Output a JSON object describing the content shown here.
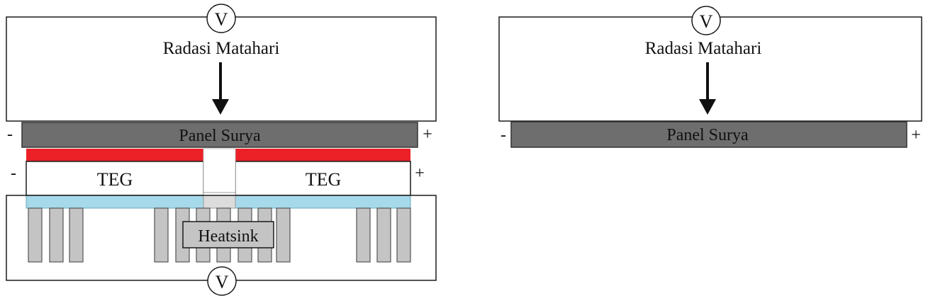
{
  "left_diagram": {
    "voltmeter_top": "V",
    "radiation_label": "Radasi Matahari",
    "panel_label": "Panel Surya",
    "panel_minus": "-",
    "panel_plus": "+",
    "teg_left_label": "TEG",
    "teg_right_label": "TEG",
    "teg_minus": "-",
    "teg_plus": "+",
    "heatsink_label": "Heatsink",
    "voltmeter_bottom": "V"
  },
  "right_diagram": {
    "voltmeter_top": "V",
    "radiation_label": "Radasi Matahari",
    "panel_label": "Panel Surya",
    "panel_minus": "-",
    "panel_plus": "+"
  },
  "colors": {
    "panel": "#6e6e6e",
    "hot_plate": "#ec2027",
    "cold_plate": "#a6d9ea",
    "fin": "#c4c4c4",
    "outline": "#1a1a1a"
  }
}
